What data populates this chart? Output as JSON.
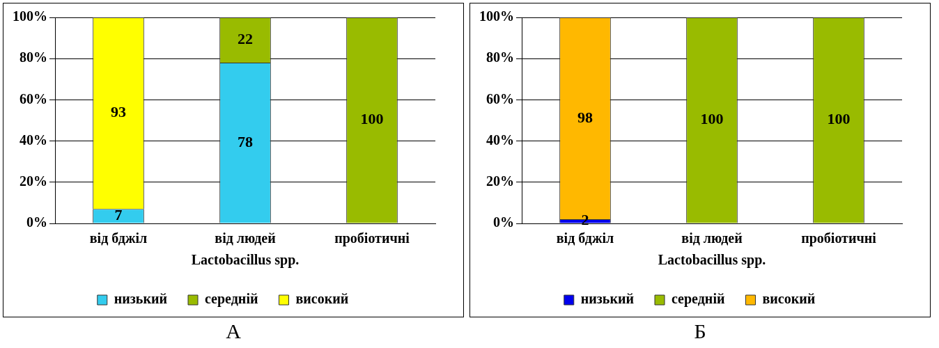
{
  "chart_data": [
    {
      "type": "bar",
      "stacked": true,
      "categories": [
        "від бджіл",
        "від людей",
        "пробіотичні"
      ],
      "xlabel": "Lactobacillus spp.",
      "ylim": [
        0,
        100
      ],
      "yticks": [
        {
          "value": 0,
          "label": "0%"
        },
        {
          "value": 20,
          "label": "20%"
        },
        {
          "value": 40,
          "label": "40%"
        },
        {
          "value": 60,
          "label": "60%"
        },
        {
          "value": 80,
          "label": "80%"
        },
        {
          "value": 100,
          "label": "100%"
        }
      ],
      "grid": "y",
      "legend": "bottom",
      "data_labels": true,
      "annotations": [
        "А"
      ],
      "series": [
        {
          "name": "низький",
          "color": "#33ccee",
          "values": [
            7,
            78,
            null
          ]
        },
        {
          "name": "середній",
          "color": "#99bb00",
          "values": [
            null,
            22,
            100
          ]
        },
        {
          "name": "високий",
          "color": "#ffff00",
          "values": [
            93,
            null,
            null
          ]
        }
      ]
    },
    {
      "type": "bar",
      "stacked": true,
      "categories": [
        "від бджіл",
        "від людей",
        "пробіотичні"
      ],
      "xlabel": "Lactobacillus spp.",
      "ylim": [
        0,
        100
      ],
      "yticks": [
        {
          "value": 0,
          "label": "0%"
        },
        {
          "value": 20,
          "label": "20%"
        },
        {
          "value": 40,
          "label": "40%"
        },
        {
          "value": 60,
          "label": "60%"
        },
        {
          "value": 80,
          "label": "80%"
        },
        {
          "value": 100,
          "label": "100%"
        }
      ],
      "grid": "y",
      "legend": "bottom",
      "data_labels": true,
      "annotations": [
        "Б"
      ],
      "series": [
        {
          "name": "низький",
          "color": "#0000ee",
          "values": [
            2,
            null,
            null
          ]
        },
        {
          "name": "середній",
          "color": "#99bb00",
          "values": [
            null,
            100,
            100
          ]
        },
        {
          "name": "високий",
          "color": "#ffb800",
          "values": [
            98,
            null,
            null
          ]
        }
      ]
    }
  ]
}
